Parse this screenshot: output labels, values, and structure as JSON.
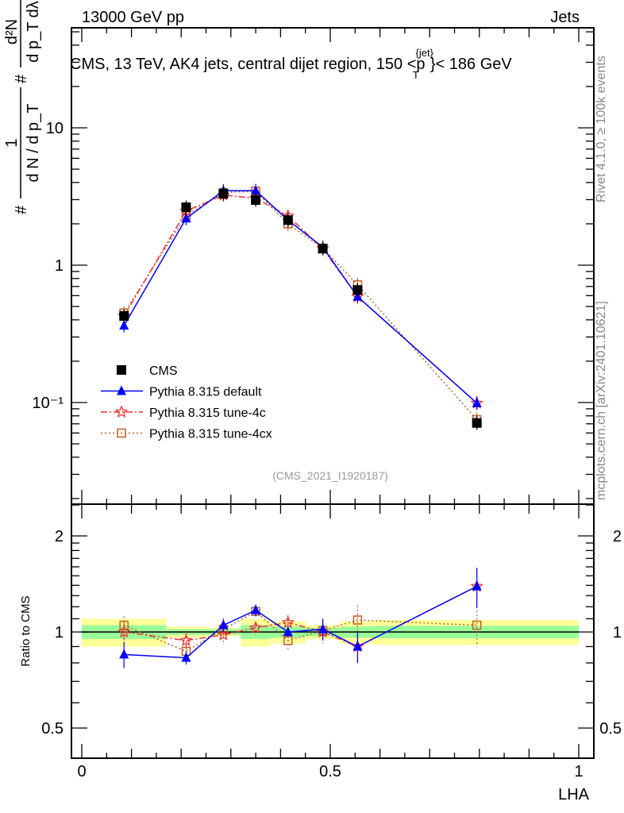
{
  "header": {
    "left": "13000 GeV pp",
    "right": "Jets"
  },
  "side_text": {
    "rivet": "Rivet 4.1.0, ≥ 100k events",
    "mcplots": "mcplots.cern.ch [arXiv:2401.10621]"
  },
  "analysis_id": "(CMS_2021_I1920187)",
  "chart_data": [
    {
      "type": "line",
      "title": "CMS, 13 TeV, AK4 jets, central dijet region, 150 <p_T^{jet}< 186 GeV",
      "title_parts": {
        "main": "CMS, 13 TeV, AK4 jets, central dijet region, 150 <p",
        "sup": "{jet}",
        "sub": "T",
        "end": "}< 186 GeV"
      },
      "ylabel": "1/N dN/dp_T d²N/dp_T dλ",
      "ylabel_parts": {
        "hash1": "#",
        "one": "1",
        "den1": "d N / d p_T",
        "hash2": "#",
        "num2": "d²N",
        "den2": "d p_T  dλ"
      },
      "yscale": "log",
      "ylim": [
        0.018,
        53
      ],
      "yticks": [
        {
          "v": 10,
          "label": "10"
        },
        {
          "v": 1,
          "label": "1"
        },
        {
          "v": 0.1,
          "label": "10⁻¹"
        }
      ],
      "x": [
        0.085,
        0.21,
        0.285,
        0.35,
        0.415,
        0.485,
        0.555,
        0.795
      ],
      "bin_edges": [
        0,
        0.17,
        0.25,
        0.32,
        0.38,
        0.45,
        0.52,
        0.59,
        1.0
      ],
      "legend_position": "center-left",
      "series": [
        {
          "name": "CMS",
          "color": "#000000",
          "marker": "square",
          "values": [
            0.427,
            2.64,
            3.31,
            2.98,
            2.13,
            1.32,
            0.66,
            0.071
          ]
        },
        {
          "name": "Pythia 8.315 default",
          "color": "#0000ff",
          "marker": "triangle",
          "line": "solid",
          "values": [
            0.363,
            2.19,
            3.48,
            3.49,
            2.13,
            1.35,
            0.59,
            0.099
          ]
        },
        {
          "name": "Pythia 8.315 tune-4c",
          "color": "#ee3333",
          "marker": "star",
          "line": "dashdot",
          "values": [
            0.427,
            2.48,
            3.24,
            3.07,
            2.28,
            1.32,
            0.59,
            0.099
          ]
        },
        {
          "name": "Pythia 8.315 tune-4cx",
          "color": "#c0602a",
          "marker": "open-square",
          "line": "dotted",
          "values": [
            0.448,
            2.3,
            3.38,
            3.46,
            2.0,
            1.33,
            0.72,
            0.075
          ]
        }
      ]
    },
    {
      "type": "line",
      "ylabel": "Ratio to CMS",
      "xlabel": "LHA",
      "yscale": "log",
      "ylim": [
        0.4,
        2.52
      ],
      "xlim": [
        -0.02,
        1.03
      ],
      "yticks": [
        {
          "v": 2,
          "label": "2"
        },
        {
          "v": 1,
          "label": "1"
        },
        {
          "v": 0.5,
          "label": "0.5"
        }
      ],
      "xticks": [
        {
          "v": 0,
          "label": "0"
        },
        {
          "v": 0.5,
          "label": "0.5"
        },
        {
          "v": 1,
          "label": "1"
        }
      ],
      "band_green": [
        0.05,
        0.02,
        0.02,
        0.05,
        0.04,
        0.03,
        0.04,
        0.045
      ],
      "band_yellow": [
        0.1,
        0.04,
        0.03,
        0.1,
        0.08,
        0.05,
        0.08,
        0.09
      ],
      "series": [
        {
          "name": "Pythia 8.315 default",
          "values": [
            0.85,
            0.83,
            1.05,
            1.17,
            1.0,
            1.02,
            0.9,
            1.39
          ],
          "errors": [
            0.08,
            0.04,
            0.05,
            0.05,
            0.04,
            0.08,
            0.1,
            0.2
          ]
        },
        {
          "name": "Pythia 8.315 tune-4c",
          "values": [
            1.0,
            0.94,
            0.98,
            1.03,
            1.07,
            1.0,
            0.9,
            1.39
          ],
          "errors": [
            0.08,
            0.06,
            0.05,
            0.05,
            0.06,
            0.08,
            0.1,
            0.2
          ]
        },
        {
          "name": "Pythia 8.315 tune-4cx",
          "values": [
            1.05,
            0.87,
            1.02,
            1.16,
            0.94,
            1.01,
            1.09,
            1.05
          ],
          "errors": [
            0.07,
            0.05,
            0.05,
            0.05,
            0.06,
            0.07,
            0.12,
            0.15
          ]
        }
      ]
    }
  ]
}
